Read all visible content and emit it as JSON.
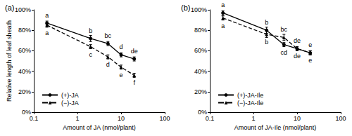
{
  "chart_data": [
    {
      "type": "line",
      "title": "(a)",
      "xlabel": "Amount of JA (nmol/plant)",
      "ylabel": "Relative length of leaf sheath",
      "log": "x",
      "grid": false,
      "legend": "lower left",
      "x": [
        0.2,
        2,
        5,
        10,
        20
      ],
      "xlim": [
        0.1,
        100
      ],
      "xticks": [
        0.1,
        1,
        10,
        100
      ],
      "ylim": [
        0,
        100
      ],
      "yticks": [
        {
          "value": 0,
          "label": "0%"
        },
        {
          "value": 20,
          "label": "20%"
        },
        {
          "value": 40,
          "label": "40%"
        },
        {
          "value": 60,
          "label": "60%"
        },
        {
          "value": 80,
          "label": "80%"
        },
        {
          "value": 100,
          "label": "100%"
        }
      ],
      "series": [
        {
          "name": "(+)-JA",
          "color": "#000000",
          "marker": "circle",
          "line_style": "solid",
          "values": [
            87,
            72,
            67,
            56,
            52
          ],
          "errors": [
            2,
            3,
            2,
            2,
            2
          ],
          "letters": [
            "a",
            "b",
            "bc",
            "d",
            "de"
          ]
        },
        {
          "name": "(−)-JA",
          "color": "#000000",
          "marker": "triangle",
          "line_style": "dashed",
          "values": [
            85,
            64,
            54,
            44,
            36
          ],
          "errors": [
            2,
            2,
            2,
            2,
            2
          ],
          "letters": [
            "a",
            "c",
            "d",
            "e",
            "f"
          ]
        }
      ]
    },
    {
      "type": "line",
      "title": "(b)",
      "xlabel": "Amount of JA-Ile (nmol/plant)",
      "log": "x",
      "grid": false,
      "legend": "lower left",
      "x": [
        0.2,
        2,
        5,
        10,
        20
      ],
      "xlim": [
        0.1,
        100
      ],
      "xticks": [
        0.1,
        1,
        10,
        100
      ],
      "ylim": [
        0,
        100
      ],
      "yticks": [
        {
          "value": 0,
          "label": "0%"
        },
        {
          "value": 20,
          "label": "20%"
        },
        {
          "value": 40,
          "label": "40%"
        },
        {
          "value": 60,
          "label": "60%"
        },
        {
          "value": 80,
          "label": "80%"
        },
        {
          "value": 100,
          "label": "100%"
        }
      ],
      "series": [
        {
          "name": "(+)-JA-Ile",
          "color": "#000000",
          "marker": "circle",
          "line_style": "solid",
          "values": [
            97,
            80,
            66,
            62,
            58
          ],
          "errors": [
            2,
            3,
            2,
            2,
            2
          ],
          "letters": [
            "a",
            "b",
            "cd",
            "de",
            "e"
          ]
        },
        {
          "name": "(−)-JA-Ile",
          "color": "#000000",
          "marker": "triangle",
          "line_style": "dashed",
          "values": [
            92,
            76,
            73,
            62,
            58
          ],
          "errors": [
            2,
            3,
            3,
            2,
            2
          ],
          "letters": [
            "a",
            "b",
            "bc",
            "de",
            "e"
          ]
        }
      ]
    }
  ]
}
